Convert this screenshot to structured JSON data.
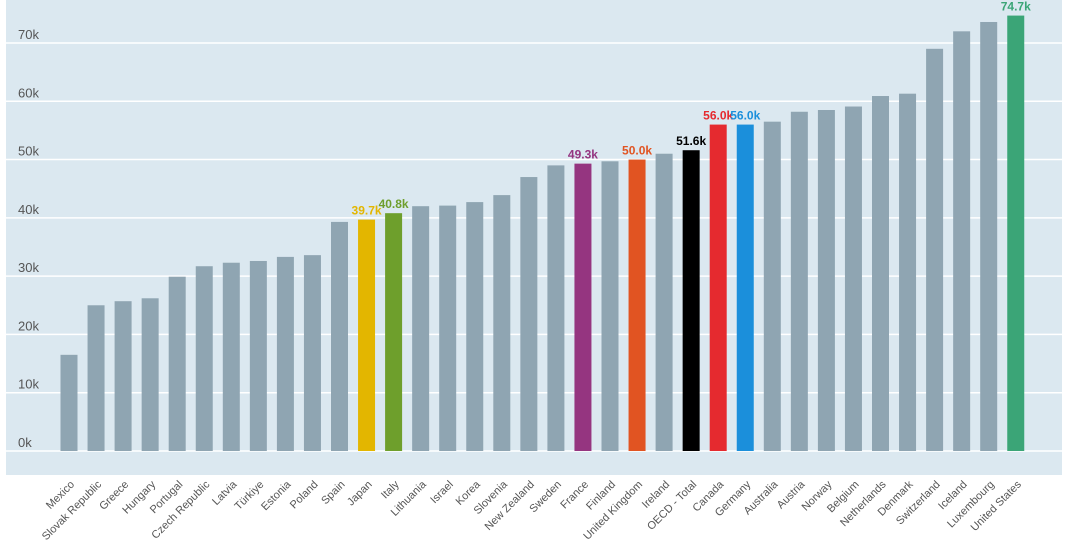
{
  "chart_data": {
    "type": "bar",
    "title": "",
    "xlabel": "",
    "ylabel": "",
    "ylim": [
      0,
      76000
    ],
    "yticks": [
      {
        "value": 0,
        "label": "0k"
      },
      {
        "value": 10000,
        "label": "10k"
      },
      {
        "value": 20000,
        "label": "20k"
      },
      {
        "value": 30000,
        "label": "30k"
      },
      {
        "value": 40000,
        "label": "40k"
      },
      {
        "value": 50000,
        "label": "50k"
      },
      {
        "value": 60000,
        "label": "60k"
      },
      {
        "value": 70000,
        "label": "70k"
      }
    ],
    "grid": true,
    "background_color": "#dbe8f0",
    "default_bar_color": "#8fa5b2",
    "default_label_color": "#555555",
    "categories": [
      "Mexico",
      "Slovak Republic",
      "Greece",
      "Hungary",
      "Portugal",
      "Czech Republic",
      "Latvia",
      "Türkiye",
      "Estonia",
      "Poland",
      "Spain",
      "Japan",
      "Italy",
      "Lithuania",
      "Israel",
      "Korea",
      "Slovenia",
      "New Zealand",
      "Sweden",
      "France",
      "Finland",
      "United Kingdom",
      "Ireland",
      "OECD - Total",
      "Canada",
      "Germany",
      "Australia",
      "Austria",
      "Norway",
      "Belgium",
      "Netherlands",
      "Denmark",
      "Switzerland",
      "Iceland",
      "Luxembourg",
      "United States"
    ],
    "values": [
      16500,
      25000,
      25700,
      26200,
      29900,
      31700,
      32300,
      32600,
      33300,
      33600,
      39300,
      39700,
      40800,
      42000,
      42100,
      42700,
      43900,
      47000,
      49000,
      49300,
      49700,
      50000,
      51000,
      51600,
      56000,
      56000,
      56500,
      58200,
      58500,
      59100,
      60900,
      61300,
      69000,
      72000,
      73600,
      74700
    ],
    "highlights": [
      {
        "category": "Japan",
        "color": "#e3b600",
        "label": "39.7k"
      },
      {
        "category": "Italy",
        "color": "#6e9f2c",
        "label": "40.8k"
      },
      {
        "category": "France",
        "color": "#953580",
        "label": "49.3k"
      },
      {
        "category": "United Kingdom",
        "color": "#e15422",
        "label": "50.0k"
      },
      {
        "category": "OECD - Total",
        "color": "#000000",
        "label": "51.6k"
      },
      {
        "category": "Canada",
        "color": "#e52a2f",
        "label": "56.0k"
      },
      {
        "category": "Germany",
        "color": "#1b8fdb",
        "label": "56.0k"
      },
      {
        "category": "United States",
        "color": "#3ba577",
        "label": "74.7k"
      }
    ]
  }
}
